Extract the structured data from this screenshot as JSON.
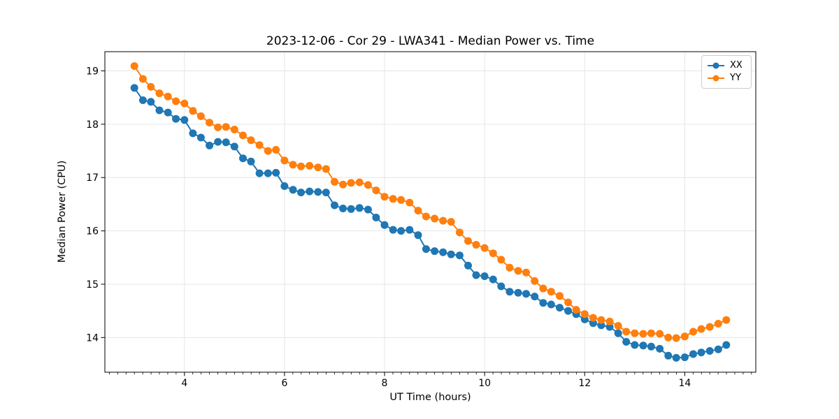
{
  "figure": {
    "title": "2023-12-06 - Cor 29 - LWA341 - Median Power vs. Time"
  },
  "chart_data": {
    "type": "line",
    "title": "2023-12-06 - Cor 29 - LWA341 - Median Power vs. Time",
    "xlabel": "UT Time (hours)",
    "ylabel": "Median Power (CPU)",
    "xlim": [
      2.41,
      15.42
    ],
    "ylim": [
      13.35,
      19.36
    ],
    "xticks": [
      4,
      6,
      8,
      10,
      12,
      14
    ],
    "yticks": [
      14,
      15,
      16,
      17,
      18,
      19
    ],
    "x_minor_tick_step": 0.16667,
    "grid": true,
    "grid_color": "#e6e6e6",
    "spine_color": "#000000",
    "background_color": "#ffffff",
    "legend": {
      "position": "upper right",
      "entries": [
        "XX",
        "YY"
      ]
    },
    "marker": "circle",
    "x": [
      3.0,
      3.17,
      3.33,
      3.5,
      3.67,
      3.83,
      4.0,
      4.17,
      4.33,
      4.5,
      4.67,
      4.83,
      5.0,
      5.17,
      5.33,
      5.5,
      5.67,
      5.83,
      6.0,
      6.17,
      6.33,
      6.5,
      6.67,
      6.83,
      7.0,
      7.17,
      7.33,
      7.5,
      7.67,
      7.83,
      8.0,
      8.17,
      8.33,
      8.5,
      8.67,
      8.83,
      9.0,
      9.17,
      9.33,
      9.5,
      9.67,
      9.83,
      10.0,
      10.17,
      10.33,
      10.5,
      10.67,
      10.83,
      11.0,
      11.17,
      11.33,
      11.5,
      11.67,
      11.83,
      12.0,
      12.17,
      12.33,
      12.5,
      12.67,
      12.83,
      13.0,
      13.17,
      13.33,
      13.5,
      13.67,
      13.83,
      14.0,
      14.17,
      14.33,
      14.5,
      14.67,
      14.83
    ],
    "series": [
      {
        "name": "XX",
        "color": "#1f77b4",
        "values": [
          18.68,
          18.45,
          18.42,
          18.26,
          18.22,
          18.1,
          18.08,
          17.83,
          17.75,
          17.6,
          17.67,
          17.66,
          17.58,
          17.36,
          17.3,
          17.08,
          17.08,
          17.09,
          16.84,
          16.77,
          16.72,
          16.74,
          16.73,
          16.72,
          16.48,
          16.42,
          16.41,
          16.43,
          16.4,
          16.25,
          16.11,
          16.02,
          16.0,
          16.02,
          15.92,
          15.66,
          15.62,
          15.6,
          15.56,
          15.54,
          15.35,
          15.17,
          15.15,
          15.09,
          14.96,
          14.86,
          14.84,
          14.82,
          14.77,
          14.65,
          14.62,
          14.56,
          14.5,
          14.44,
          14.34,
          14.27,
          14.23,
          14.2,
          14.08,
          13.92,
          13.86,
          13.85,
          13.83,
          13.79,
          13.66,
          13.62,
          13.63,
          13.69,
          13.72,
          13.75,
          13.78,
          13.86
        ]
      },
      {
        "name": "YY",
        "color": "#ff7f0e",
        "values": [
          19.09,
          18.85,
          18.7,
          18.58,
          18.52,
          18.43,
          18.39,
          18.25,
          18.15,
          18.03,
          17.94,
          17.95,
          17.9,
          17.79,
          17.7,
          17.61,
          17.5,
          17.52,
          17.32,
          17.24,
          17.21,
          17.22,
          17.19,
          17.16,
          16.92,
          16.87,
          16.9,
          16.91,
          16.86,
          16.76,
          16.64,
          16.6,
          16.58,
          16.53,
          16.38,
          16.27,
          16.23,
          16.19,
          16.17,
          15.97,
          15.81,
          15.74,
          15.68,
          15.58,
          15.46,
          15.31,
          15.25,
          15.22,
          15.06,
          14.92,
          14.86,
          14.78,
          14.66,
          14.52,
          14.44,
          14.37,
          14.33,
          14.3,
          14.22,
          14.11,
          14.08,
          14.07,
          14.08,
          14.07,
          14.0,
          13.99,
          14.02,
          14.11,
          14.16,
          14.2,
          14.26,
          14.33
        ]
      }
    ]
  }
}
